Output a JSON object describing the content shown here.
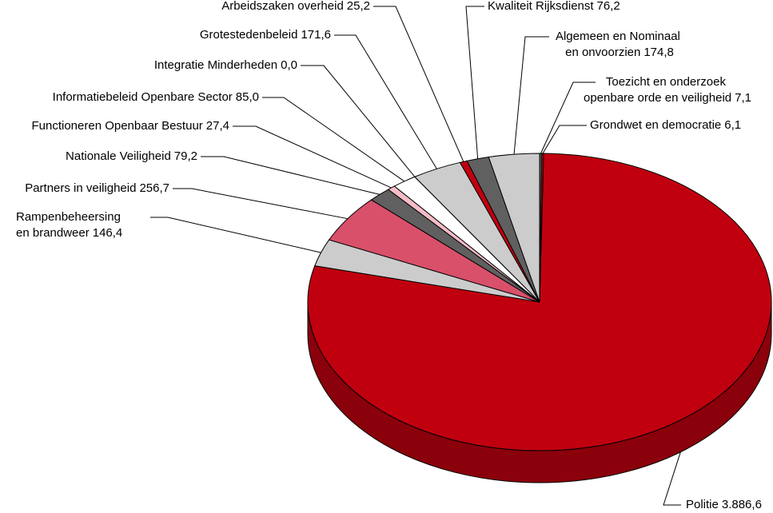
{
  "chart_data": {
    "type": "pie",
    "categories": [
      "Politie",
      "Rampenbeheersing en brandweer",
      "Partners in veiligheid",
      "Nationale Veiligheid",
      "Functioneren Openbaar Bestuur",
      "Informatiebeleid Openbare Sector",
      "Integratie Minderheden",
      "Grotestedenbeleid",
      "Arbeidszaken overheid",
      "Kwaliteit Rijksdienst",
      "Algemeen en Nominaal en onvoorzien",
      "Toezicht en onderzoek openbare orde en veiligheid",
      "Grondwet en democratie"
    ],
    "values": [
      3886.6,
      146.4,
      256.7,
      79.2,
      27.4,
      85.0,
      0.0,
      171.6,
      25.2,
      76.2,
      174.8,
      7.1,
      6.1
    ],
    "value_labels": [
      "3.886,6",
      "146,4",
      "256,7",
      "79,2",
      "27,4",
      "85,0",
      "0,0",
      "171,6",
      "25,2",
      "76,2",
      "174,8",
      "7,1",
      "6,1"
    ],
    "colors": [
      "#c0000f",
      "#cccccc",
      "#d9506a",
      "#606060",
      "#f4bcc6",
      "#ffffff",
      "#ffffff",
      "#cccccc",
      "#c0000f",
      "#606060",
      "#cccccc",
      "#606060",
      "#c0000f"
    ]
  }
}
